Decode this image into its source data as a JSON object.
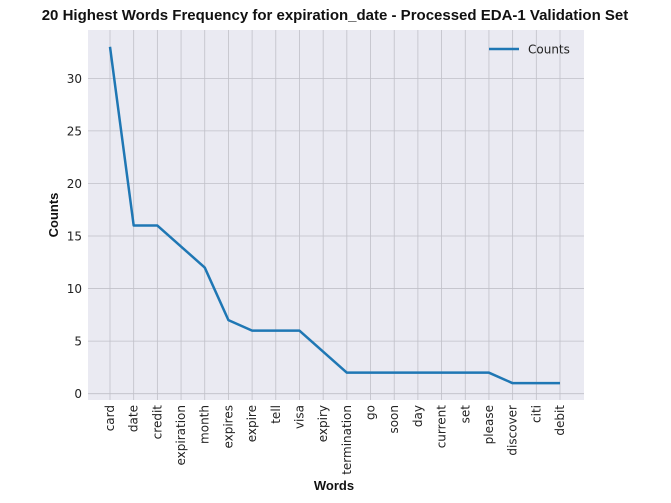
{
  "chart_data": {
    "type": "line",
    "title": "20 Highest Words Frequency for expiration_date - Processed EDA-1 Validation Set",
    "xlabel": "Words",
    "ylabel": "Counts",
    "categories": [
      "card",
      "date",
      "credit",
      "expiration",
      "month",
      "expires",
      "expire",
      "tell",
      "visa",
      "expiry",
      "termination",
      "go",
      "soon",
      "day",
      "current",
      "set",
      "please",
      "discover",
      "citi",
      "debit"
    ],
    "series": [
      {
        "name": "Counts",
        "values": [
          33,
          16,
          16,
          14,
          12,
          7,
          6,
          6,
          6,
          4,
          2,
          2,
          2,
          2,
          2,
          2,
          2,
          1,
          1,
          1
        ]
      }
    ],
    "ylim": [
      -0.6,
      34.6
    ],
    "yticks": [
      0,
      5,
      10,
      15,
      20,
      25,
      30
    ],
    "grid": true,
    "legend_position": "top-right",
    "colors": {
      "line": "#1f77b4",
      "plot_background": "#eaeaf2",
      "grid": "#c0c0c8"
    }
  }
}
